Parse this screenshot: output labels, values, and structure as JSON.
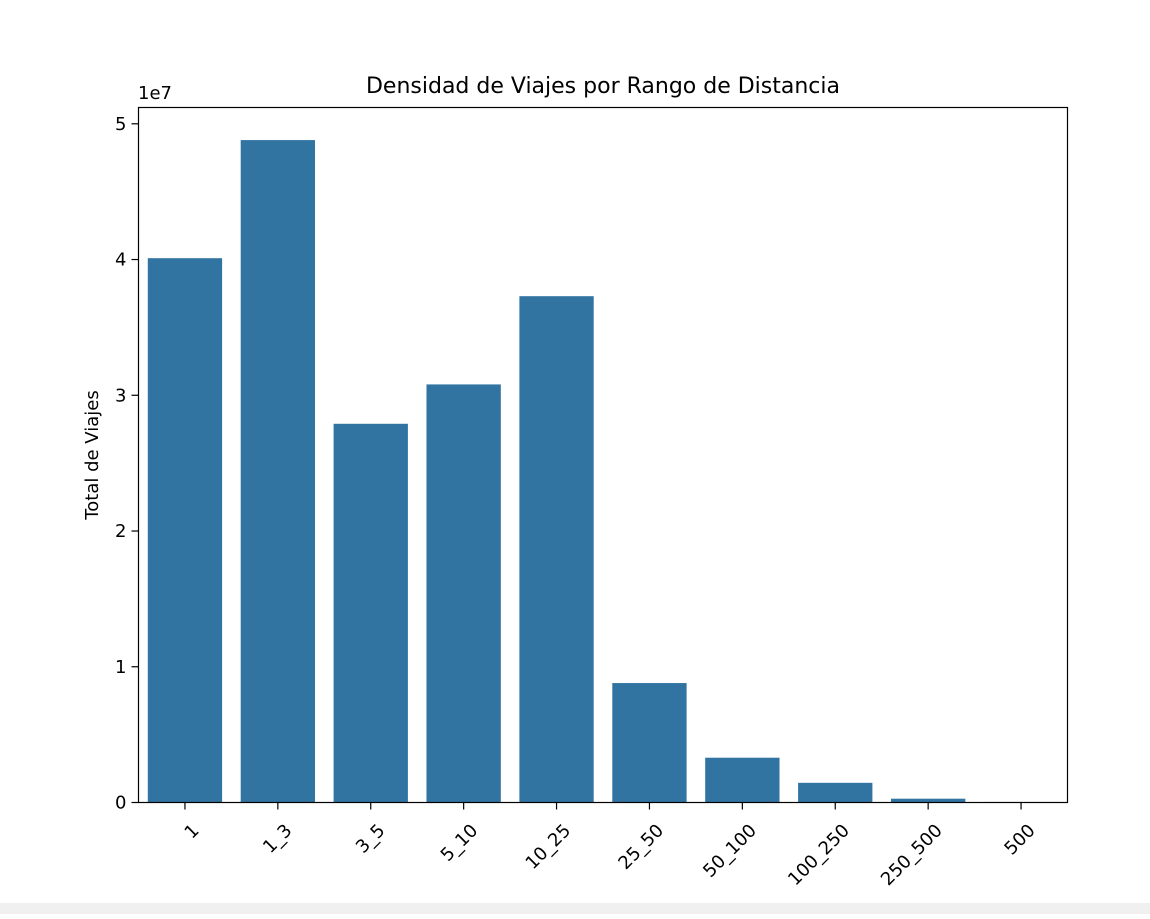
{
  "chart_data": {
    "type": "bar",
    "title": "Densidad de Viajes por Rango de Distancia",
    "xlabel": "",
    "ylabel": "Total de Viajes",
    "offset_text": "1e7",
    "categories": [
      "1",
      "1_3",
      "3_5",
      "5_10",
      "10_25",
      "25_50",
      "50_100",
      "100_250",
      "250_500",
      "500"
    ],
    "values": [
      40100000,
      48800000,
      27900000,
      30800000,
      37300000,
      8800000,
      3300000,
      1450000,
      280000,
      40000
    ],
    "y_ticks": [
      0,
      10000000,
      20000000,
      30000000,
      40000000,
      50000000
    ],
    "y_tick_labels": [
      "0",
      "1",
      "2",
      "3",
      "4",
      "5"
    ],
    "ylim": [
      0,
      51200000
    ],
    "grid": false,
    "colors": {
      "bar": "#3274a1",
      "axes": "#000000",
      "text": "#000000",
      "background": "#ffffff"
    }
  }
}
